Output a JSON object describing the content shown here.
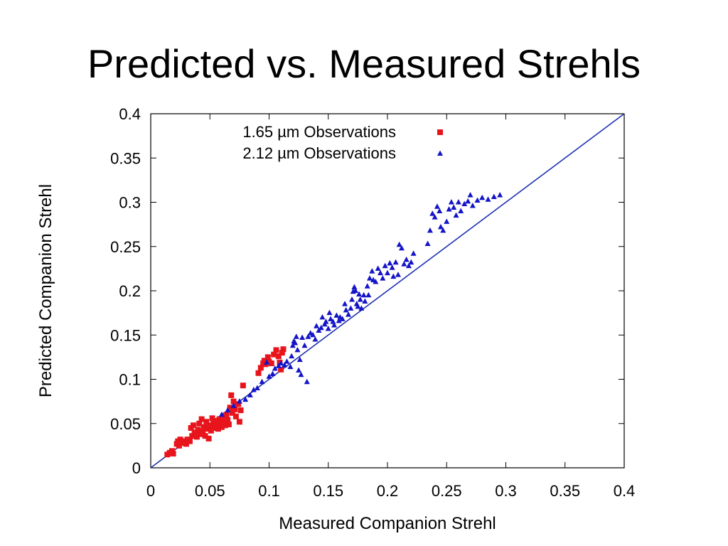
{
  "slide": {
    "title": "Predicted vs. Measured Strehls"
  },
  "chart_data": {
    "type": "scatter",
    "xlabel": "Measured Companion Strehl",
    "ylabel": "Predicted Companion Strehl",
    "xlim": [
      0,
      0.4
    ],
    "ylim": [
      0,
      0.4
    ],
    "xticks": [
      "0",
      "0.05",
      "0.1",
      "0.15",
      "0.2",
      "0.25",
      "0.3",
      "0.35",
      "0.4"
    ],
    "yticks": [
      "0",
      "0.05",
      "0.1",
      "0.15",
      "0.2",
      "0.25",
      "0.3",
      "0.35",
      "0.4"
    ],
    "grid": false,
    "legend_position": "top-left",
    "reference_line": {
      "x": [
        0,
        0.4
      ],
      "y": [
        0,
        0.4
      ],
      "color": "#1f2fb0"
    },
    "series": [
      {
        "name": "1.65 µm Observations",
        "marker": "square",
        "color": "#e8141c",
        "points": [
          [
            0.014,
            0.015
          ],
          [
            0.016,
            0.017
          ],
          [
            0.018,
            0.019
          ],
          [
            0.019,
            0.016
          ],
          [
            0.022,
            0.027
          ],
          [
            0.023,
            0.03
          ],
          [
            0.024,
            0.025
          ],
          [
            0.025,
            0.032
          ],
          [
            0.027,
            0.028
          ],
          [
            0.028,
            0.03
          ],
          [
            0.03,
            0.027
          ],
          [
            0.031,
            0.032
          ],
          [
            0.033,
            0.03
          ],
          [
            0.034,
            0.045
          ],
          [
            0.035,
            0.036
          ],
          [
            0.036,
            0.048
          ],
          [
            0.037,
            0.04
          ],
          [
            0.039,
            0.035
          ],
          [
            0.04,
            0.043
          ],
          [
            0.041,
            0.05
          ],
          [
            0.042,
            0.038
          ],
          [
            0.043,
            0.055
          ],
          [
            0.044,
            0.041
          ],
          [
            0.045,
            0.046
          ],
          [
            0.046,
            0.036
          ],
          [
            0.047,
            0.052
          ],
          [
            0.048,
            0.044
          ],
          [
            0.049,
            0.033
          ],
          [
            0.05,
            0.048
          ],
          [
            0.051,
            0.042
          ],
          [
            0.052,
            0.056
          ],
          [
            0.053,
            0.05
          ],
          [
            0.054,
            0.045
          ],
          [
            0.055,
            0.053
          ],
          [
            0.056,
            0.048
          ],
          [
            0.057,
            0.044
          ],
          [
            0.058,
            0.055
          ],
          [
            0.059,
            0.05
          ],
          [
            0.06,
            0.046
          ],
          [
            0.061,
            0.058
          ],
          [
            0.062,
            0.052
          ],
          [
            0.063,
            0.048
          ],
          [
            0.064,
            0.06
          ],
          [
            0.065,
            0.054
          ],
          [
            0.066,
            0.049
          ],
          [
            0.067,
            0.068
          ],
          [
            0.068,
            0.082
          ],
          [
            0.069,
            0.062
          ],
          [
            0.07,
            0.075
          ],
          [
            0.071,
            0.066
          ],
          [
            0.072,
            0.058
          ],
          [
            0.074,
            0.072
          ],
          [
            0.075,
            0.052
          ],
          [
            0.076,
            0.065
          ],
          [
            0.078,
            0.093
          ],
          [
            0.091,
            0.107
          ],
          [
            0.093,
            0.113
          ],
          [
            0.095,
            0.118
          ],
          [
            0.096,
            0.121
          ],
          [
            0.097,
            0.117
          ],
          [
            0.099,
            0.125
          ],
          [
            0.1,
            0.12
          ],
          [
            0.102,
            0.118
          ],
          [
            0.104,
            0.128
          ],
          [
            0.106,
            0.133
          ],
          [
            0.108,
            0.126
          ],
          [
            0.109,
            0.119
          ],
          [
            0.11,
            0.111
          ],
          [
            0.111,
            0.13
          ],
          [
            0.112,
            0.134
          ]
        ]
      },
      {
        "name": "2.12 µm Observations",
        "marker": "triangle",
        "color": "#1414c8",
        "points": [
          [
            0.06,
            0.06
          ],
          [
            0.065,
            0.065
          ],
          [
            0.07,
            0.07
          ],
          [
            0.075,
            0.075
          ],
          [
            0.08,
            0.077
          ],
          [
            0.084,
            0.082
          ],
          [
            0.087,
            0.088
          ],
          [
            0.09,
            0.09
          ],
          [
            0.094,
            0.097
          ],
          [
            0.098,
            0.119
          ],
          [
            0.1,
            0.103
          ],
          [
            0.103,
            0.106
          ],
          [
            0.105,
            0.112
          ],
          [
            0.108,
            0.115
          ],
          [
            0.11,
            0.118
          ],
          [
            0.113,
            0.116
          ],
          [
            0.115,
            0.12
          ],
          [
            0.118,
            0.114
          ],
          [
            0.119,
            0.126
          ],
          [
            0.12,
            0.138
          ],
          [
            0.121,
            0.143
          ],
          [
            0.122,
            0.141
          ],
          [
            0.123,
            0.148
          ],
          [
            0.124,
            0.133
          ],
          [
            0.125,
            0.11
          ],
          [
            0.126,
            0.122
          ],
          [
            0.127,
            0.105
          ],
          [
            0.128,
            0.147
          ],
          [
            0.13,
            0.138
          ],
          [
            0.132,
            0.097
          ],
          [
            0.133,
            0.148
          ],
          [
            0.135,
            0.152
          ],
          [
            0.137,
            0.15
          ],
          [
            0.139,
            0.145
          ],
          [
            0.14,
            0.16
          ],
          [
            0.142,
            0.155
          ],
          [
            0.144,
            0.158
          ],
          [
            0.145,
            0.17
          ],
          [
            0.147,
            0.162
          ],
          [
            0.148,
            0.165
          ],
          [
            0.15,
            0.157
          ],
          [
            0.151,
            0.175
          ],
          [
            0.152,
            0.168
          ],
          [
            0.154,
            0.165
          ],
          [
            0.155,
            0.161
          ],
          [
            0.157,
            0.172
          ],
          [
            0.159,
            0.166
          ],
          [
            0.16,
            0.17
          ],
          [
            0.162,
            0.168
          ],
          [
            0.164,
            0.185
          ],
          [
            0.165,
            0.178
          ],
          [
            0.167,
            0.173
          ],
          [
            0.169,
            0.18
          ],
          [
            0.17,
            0.19
          ],
          [
            0.171,
            0.199
          ],
          [
            0.172,
            0.204
          ],
          [
            0.173,
            0.2
          ],
          [
            0.174,
            0.185
          ],
          [
            0.175,
            0.182
          ],
          [
            0.176,
            0.196
          ],
          [
            0.177,
            0.19
          ],
          [
            0.178,
            0.18
          ],
          [
            0.18,
            0.195
          ],
          [
            0.181,
            0.188
          ],
          [
            0.183,
            0.205
          ],
          [
            0.184,
            0.195
          ],
          [
            0.185,
            0.214
          ],
          [
            0.187,
            0.222
          ],
          [
            0.188,
            0.212
          ],
          [
            0.19,
            0.21
          ],
          [
            0.192,
            0.225
          ],
          [
            0.194,
            0.22
          ],
          [
            0.196,
            0.214
          ],
          [
            0.198,
            0.228
          ],
          [
            0.2,
            0.22
          ],
          [
            0.202,
            0.231
          ],
          [
            0.204,
            0.226
          ],
          [
            0.205,
            0.216
          ],
          [
            0.207,
            0.232
          ],
          [
            0.209,
            0.218
          ],
          [
            0.21,
            0.252
          ],
          [
            0.212,
            0.248
          ],
          [
            0.214,
            0.23
          ],
          [
            0.216,
            0.235
          ],
          [
            0.218,
            0.228
          ],
          [
            0.22,
            0.232
          ],
          [
            0.222,
            0.242
          ],
          [
            0.234,
            0.253
          ],
          [
            0.236,
            0.268
          ],
          [
            0.238,
            0.287
          ],
          [
            0.24,
            0.283
          ],
          [
            0.242,
            0.295
          ],
          [
            0.244,
            0.29
          ],
          [
            0.245,
            0.272
          ],
          [
            0.247,
            0.268
          ],
          [
            0.25,
            0.278
          ],
          [
            0.252,
            0.292
          ],
          [
            0.254,
            0.3
          ],
          [
            0.256,
            0.294
          ],
          [
            0.258,
            0.285
          ],
          [
            0.26,
            0.3
          ],
          [
            0.262,
            0.29
          ],
          [
            0.265,
            0.298
          ],
          [
            0.268,
            0.301
          ],
          [
            0.27,
            0.308
          ],
          [
            0.272,
            0.296
          ],
          [
            0.276,
            0.302
          ],
          [
            0.28,
            0.305
          ],
          [
            0.285,
            0.303
          ],
          [
            0.29,
            0.306
          ],
          [
            0.295,
            0.308
          ]
        ]
      }
    ]
  }
}
